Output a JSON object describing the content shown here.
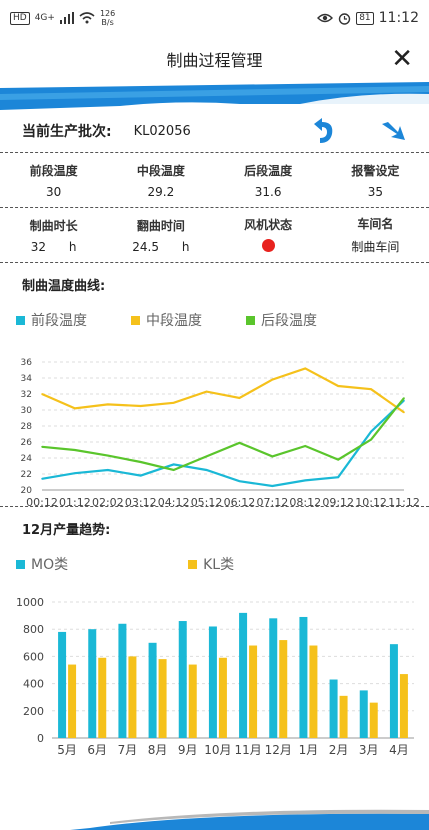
{
  "status": {
    "network": "4G+",
    "speed_value": "126",
    "speed_unit": "B/s",
    "battery": "81",
    "time": "11:12"
  },
  "header": {
    "title": "制曲过程管理"
  },
  "batch": {
    "label": "当前生产批次:",
    "value": "KL02056"
  },
  "params": [
    {
      "label": "前段温度",
      "value": "30"
    },
    {
      "label": "中段温度",
      "value": "29.2"
    },
    {
      "label": "后段温度",
      "value": "31.6"
    },
    {
      "label": "报警设定",
      "value": "35"
    }
  ],
  "info": [
    {
      "label": "制曲时长",
      "value": "32",
      "unit": "h"
    },
    {
      "label": "翻曲时间",
      "value": "24.5",
      "unit": "h"
    },
    {
      "label": "风机状态",
      "status_color": "#e8221e"
    },
    {
      "label": "车间名",
      "value": "制曲车间"
    }
  ],
  "temp_section": {
    "title": "制曲温度曲线:"
  },
  "prod_section": {
    "title": "12月产量趋势:"
  },
  "colors": {
    "cyan": "#1ab8d6",
    "yellow": "#f5c11b",
    "green": "#5ac52c",
    "banner": "#1c86d8"
  },
  "chart_data": [
    {
      "type": "line",
      "title": "",
      "x": [
        "00:12",
        "01:12",
        "02:02",
        "03:12",
        "04:12",
        "05:12",
        "06:12",
        "07:12",
        "08:12",
        "09:12",
        "10:12",
        "11:12"
      ],
      "series": [
        {
          "name": "前段温度",
          "color": "#1ab8d6",
          "values": [
            21.4,
            22.1,
            22.5,
            21.8,
            23.2,
            22.5,
            21.1,
            20.5,
            21.2,
            21.6,
            27.3,
            31.2
          ]
        },
        {
          "name": "中段温度",
          "color": "#f5c11b",
          "values": [
            32.0,
            30.2,
            30.7,
            30.5,
            30.9,
            32.3,
            31.5,
            33.8,
            35.2,
            33.0,
            32.6,
            29.7
          ]
        },
        {
          "name": "后段温度",
          "color": "#5ac52c",
          "values": [
            25.4,
            25.0,
            24.3,
            23.5,
            22.5,
            24.2,
            25.9,
            24.2,
            25.5,
            23.8,
            26.3,
            31.5
          ]
        }
      ],
      "yticks": [
        "20",
        "22",
        "24",
        "26",
        "28",
        "30",
        "32",
        "34",
        "36"
      ],
      "ylim": [
        20,
        36
      ],
      "grid": true,
      "legend": "top-left"
    },
    {
      "type": "bar",
      "title": "",
      "categories": [
        "5月",
        "6月",
        "7月",
        "8月",
        "9月",
        "10月",
        "11月",
        "12月",
        "1月",
        "2月",
        "3月",
        "4月"
      ],
      "series": [
        {
          "name": "MO类",
          "color": "#1ab8d6",
          "values": [
            780,
            800,
            840,
            700,
            860,
            820,
            920,
            880,
            890,
            430,
            350,
            690
          ]
        },
        {
          "name": "KL类",
          "color": "#f5c11b",
          "values": [
            540,
            590,
            600,
            580,
            540,
            590,
            680,
            720,
            680,
            310,
            260,
            470
          ]
        }
      ],
      "yticks": [
        "0",
        "200",
        "400",
        "600",
        "800",
        "1000"
      ],
      "ylim": [
        0,
        1000
      ],
      "grid": true,
      "legend": "top-left"
    }
  ]
}
